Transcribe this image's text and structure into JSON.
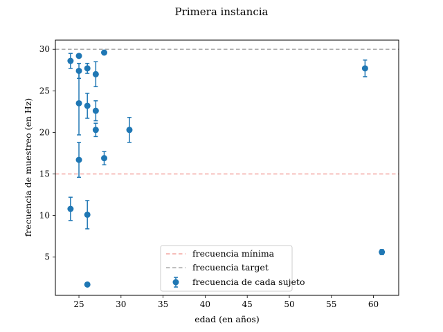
{
  "chart_data": {
    "type": "scatter",
    "title": "Primera instancia",
    "xlabel": "edad (en años)",
    "ylabel": "frecuencia de muestreo (en Hz)",
    "xlim": [
      22.2,
      63.0
    ],
    "ylim": [
      0.4,
      31.1
    ],
    "xticks": [
      25,
      30,
      35,
      40,
      45,
      50,
      55,
      60
    ],
    "yticks": [
      5,
      10,
      15,
      20,
      25,
      30
    ],
    "grid": false,
    "legend_position": "lower-center",
    "hlines": [
      {
        "name": "frecuencia mínima",
        "y": 15,
        "color": "#f4a6a0",
        "style": "dashed"
      },
      {
        "name": "frecuencia target",
        "y": 30,
        "color": "#aaaaaa",
        "style": "dashed"
      }
    ],
    "series": [
      {
        "name": "frecuencia de cada sujeto",
        "color": "#1f77b4",
        "points": [
          {
            "x": 24,
            "y": 28.6,
            "err": 0.9
          },
          {
            "x": 25,
            "y": 29.2,
            "err": 0.0
          },
          {
            "x": 25,
            "y": 27.4,
            "err": 0.9
          },
          {
            "x": 25,
            "y": 23.5,
            "err": 3.8
          },
          {
            "x": 25,
            "y": 16.7,
            "err": 2.1
          },
          {
            "x": 24,
            "y": 10.8,
            "err": 1.4
          },
          {
            "x": 26,
            "y": 27.7,
            "err": 0.6
          },
          {
            "x": 26,
            "y": 23.2,
            "err": 1.5
          },
          {
            "x": 26,
            "y": 10.1,
            "err": 1.7
          },
          {
            "x": 26,
            "y": 1.7,
            "err": 0.0
          },
          {
            "x": 27,
            "y": 27.0,
            "err": 1.5
          },
          {
            "x": 27,
            "y": 22.6,
            "err": 1.2
          },
          {
            "x": 27,
            "y": 20.3,
            "err": 0.8
          },
          {
            "x": 28,
            "y": 29.6,
            "err": 0.0
          },
          {
            "x": 28,
            "y": 16.9,
            "err": 0.8
          },
          {
            "x": 31,
            "y": 20.3,
            "err": 1.5
          },
          {
            "x": 59,
            "y": 27.7,
            "err": 1.0
          },
          {
            "x": 61,
            "y": 5.6,
            "err": 0.3
          }
        ]
      }
    ]
  }
}
